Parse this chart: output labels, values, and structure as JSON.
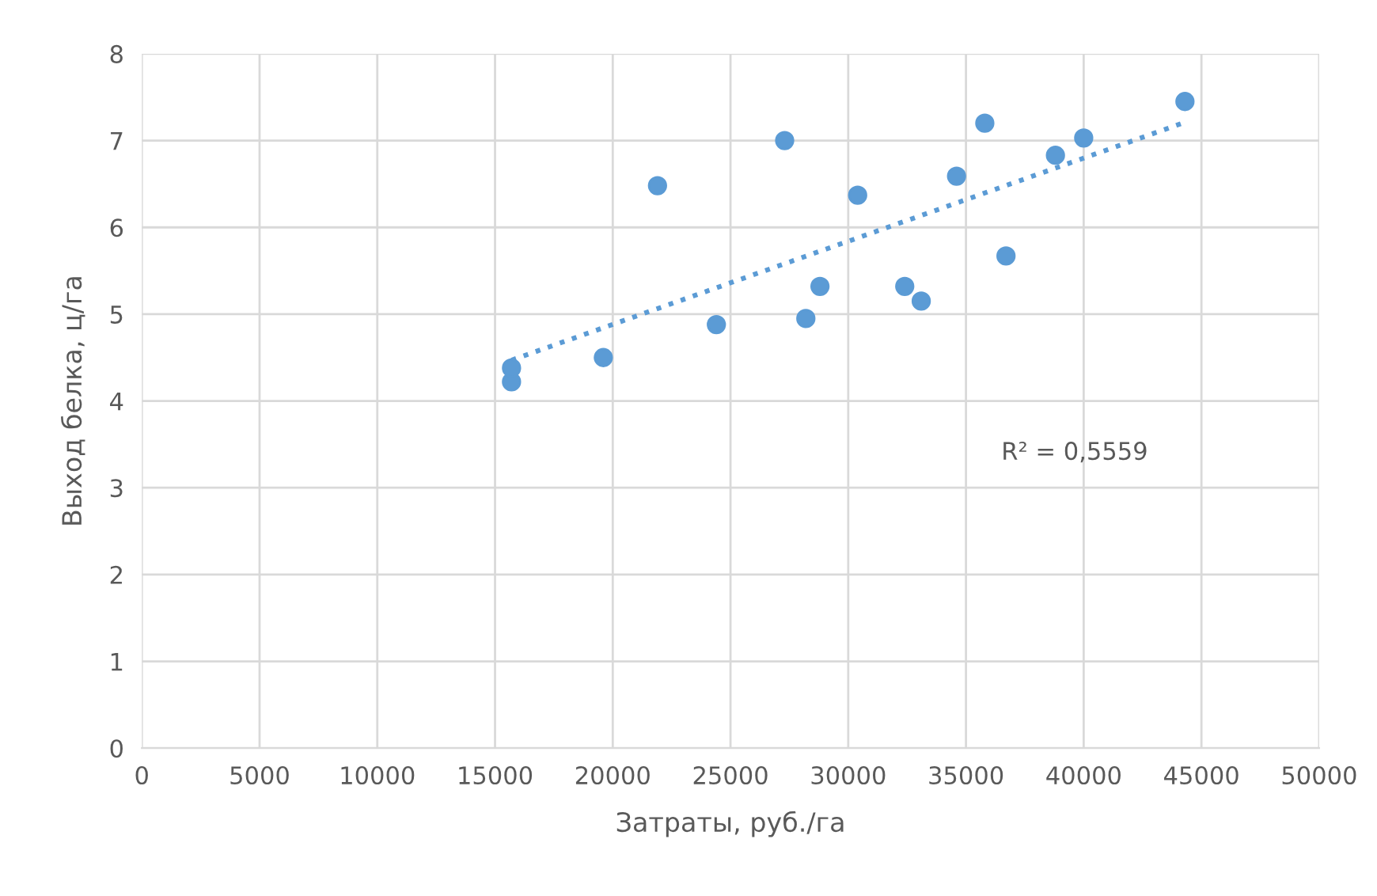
{
  "chart_data": {
    "type": "scatter",
    "xlabel": "Затраты, руб./га",
    "ylabel": "Выход белка, ц/га",
    "series": [
      {
        "color": "#5b9bd5",
        "marker": "circle",
        "x": [
          15700,
          15700,
          19600,
          21900,
          24400,
          27300,
          28200,
          28800,
          30400,
          32400,
          33100,
          34600,
          35800,
          36700,
          38800,
          40000,
          44300
        ],
        "values": [
          4.22,
          4.38,
          4.5,
          6.48,
          4.88,
          7.0,
          4.95,
          5.32,
          6.37,
          5.32,
          5.15,
          6.59,
          7.2,
          5.67,
          6.83,
          7.03,
          7.45
        ]
      },
      {
        "type": "line",
        "color": "#5b9bd5",
        "line_style": "dotted",
        "x": [
          15700,
          44300
        ],
        "values": [
          4.47,
          7.21
        ]
      }
    ],
    "annotations": [
      "R² = 0,5559"
    ],
    "xlim": [
      0,
      50000
    ],
    "xticks": [
      0,
      5000,
      10000,
      15000,
      20000,
      25000,
      30000,
      35000,
      40000,
      45000,
      50000
    ],
    "ylim": [
      0,
      8
    ],
    "yticks": [
      0,
      1,
      2,
      3,
      4,
      5,
      6,
      7,
      8
    ],
    "grid": true,
    "legend": false
  }
}
